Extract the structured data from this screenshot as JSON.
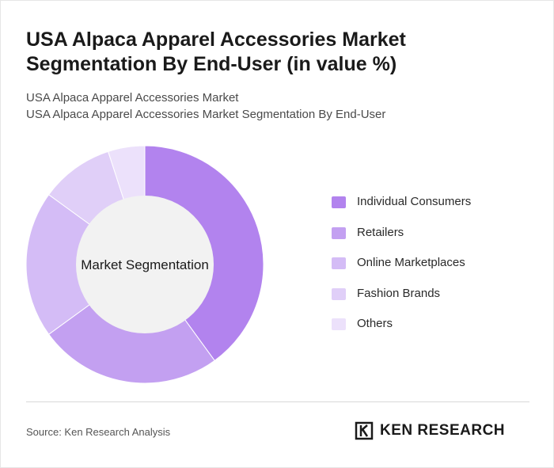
{
  "header": {
    "title": "USA Alpaca Apparel Accessories Market Segmentation By End-User (in value %)",
    "subtitle_line1": "USA Alpaca Apparel Accessories Market",
    "subtitle_line2": "USA Alpaca Apparel Accessories Market Segmentation By End-User"
  },
  "chart_data": {
    "type": "pie",
    "variant": "donut",
    "center_label": "Market Segmentation",
    "categories": [
      "Individual Consumers",
      "Retailers",
      "Online Marketplaces",
      "Fashion Brands",
      "Others"
    ],
    "values": [
      40,
      25,
      20,
      10,
      5
    ],
    "colors": [
      "#b283ee",
      "#c3a0f1",
      "#d4bcf6",
      "#e0cff8",
      "#ece1fb"
    ],
    "legend_position": "right"
  },
  "footer": {
    "source": "Source: Ken Research Analysis",
    "logo_text": "KEN RESEARCH"
  }
}
